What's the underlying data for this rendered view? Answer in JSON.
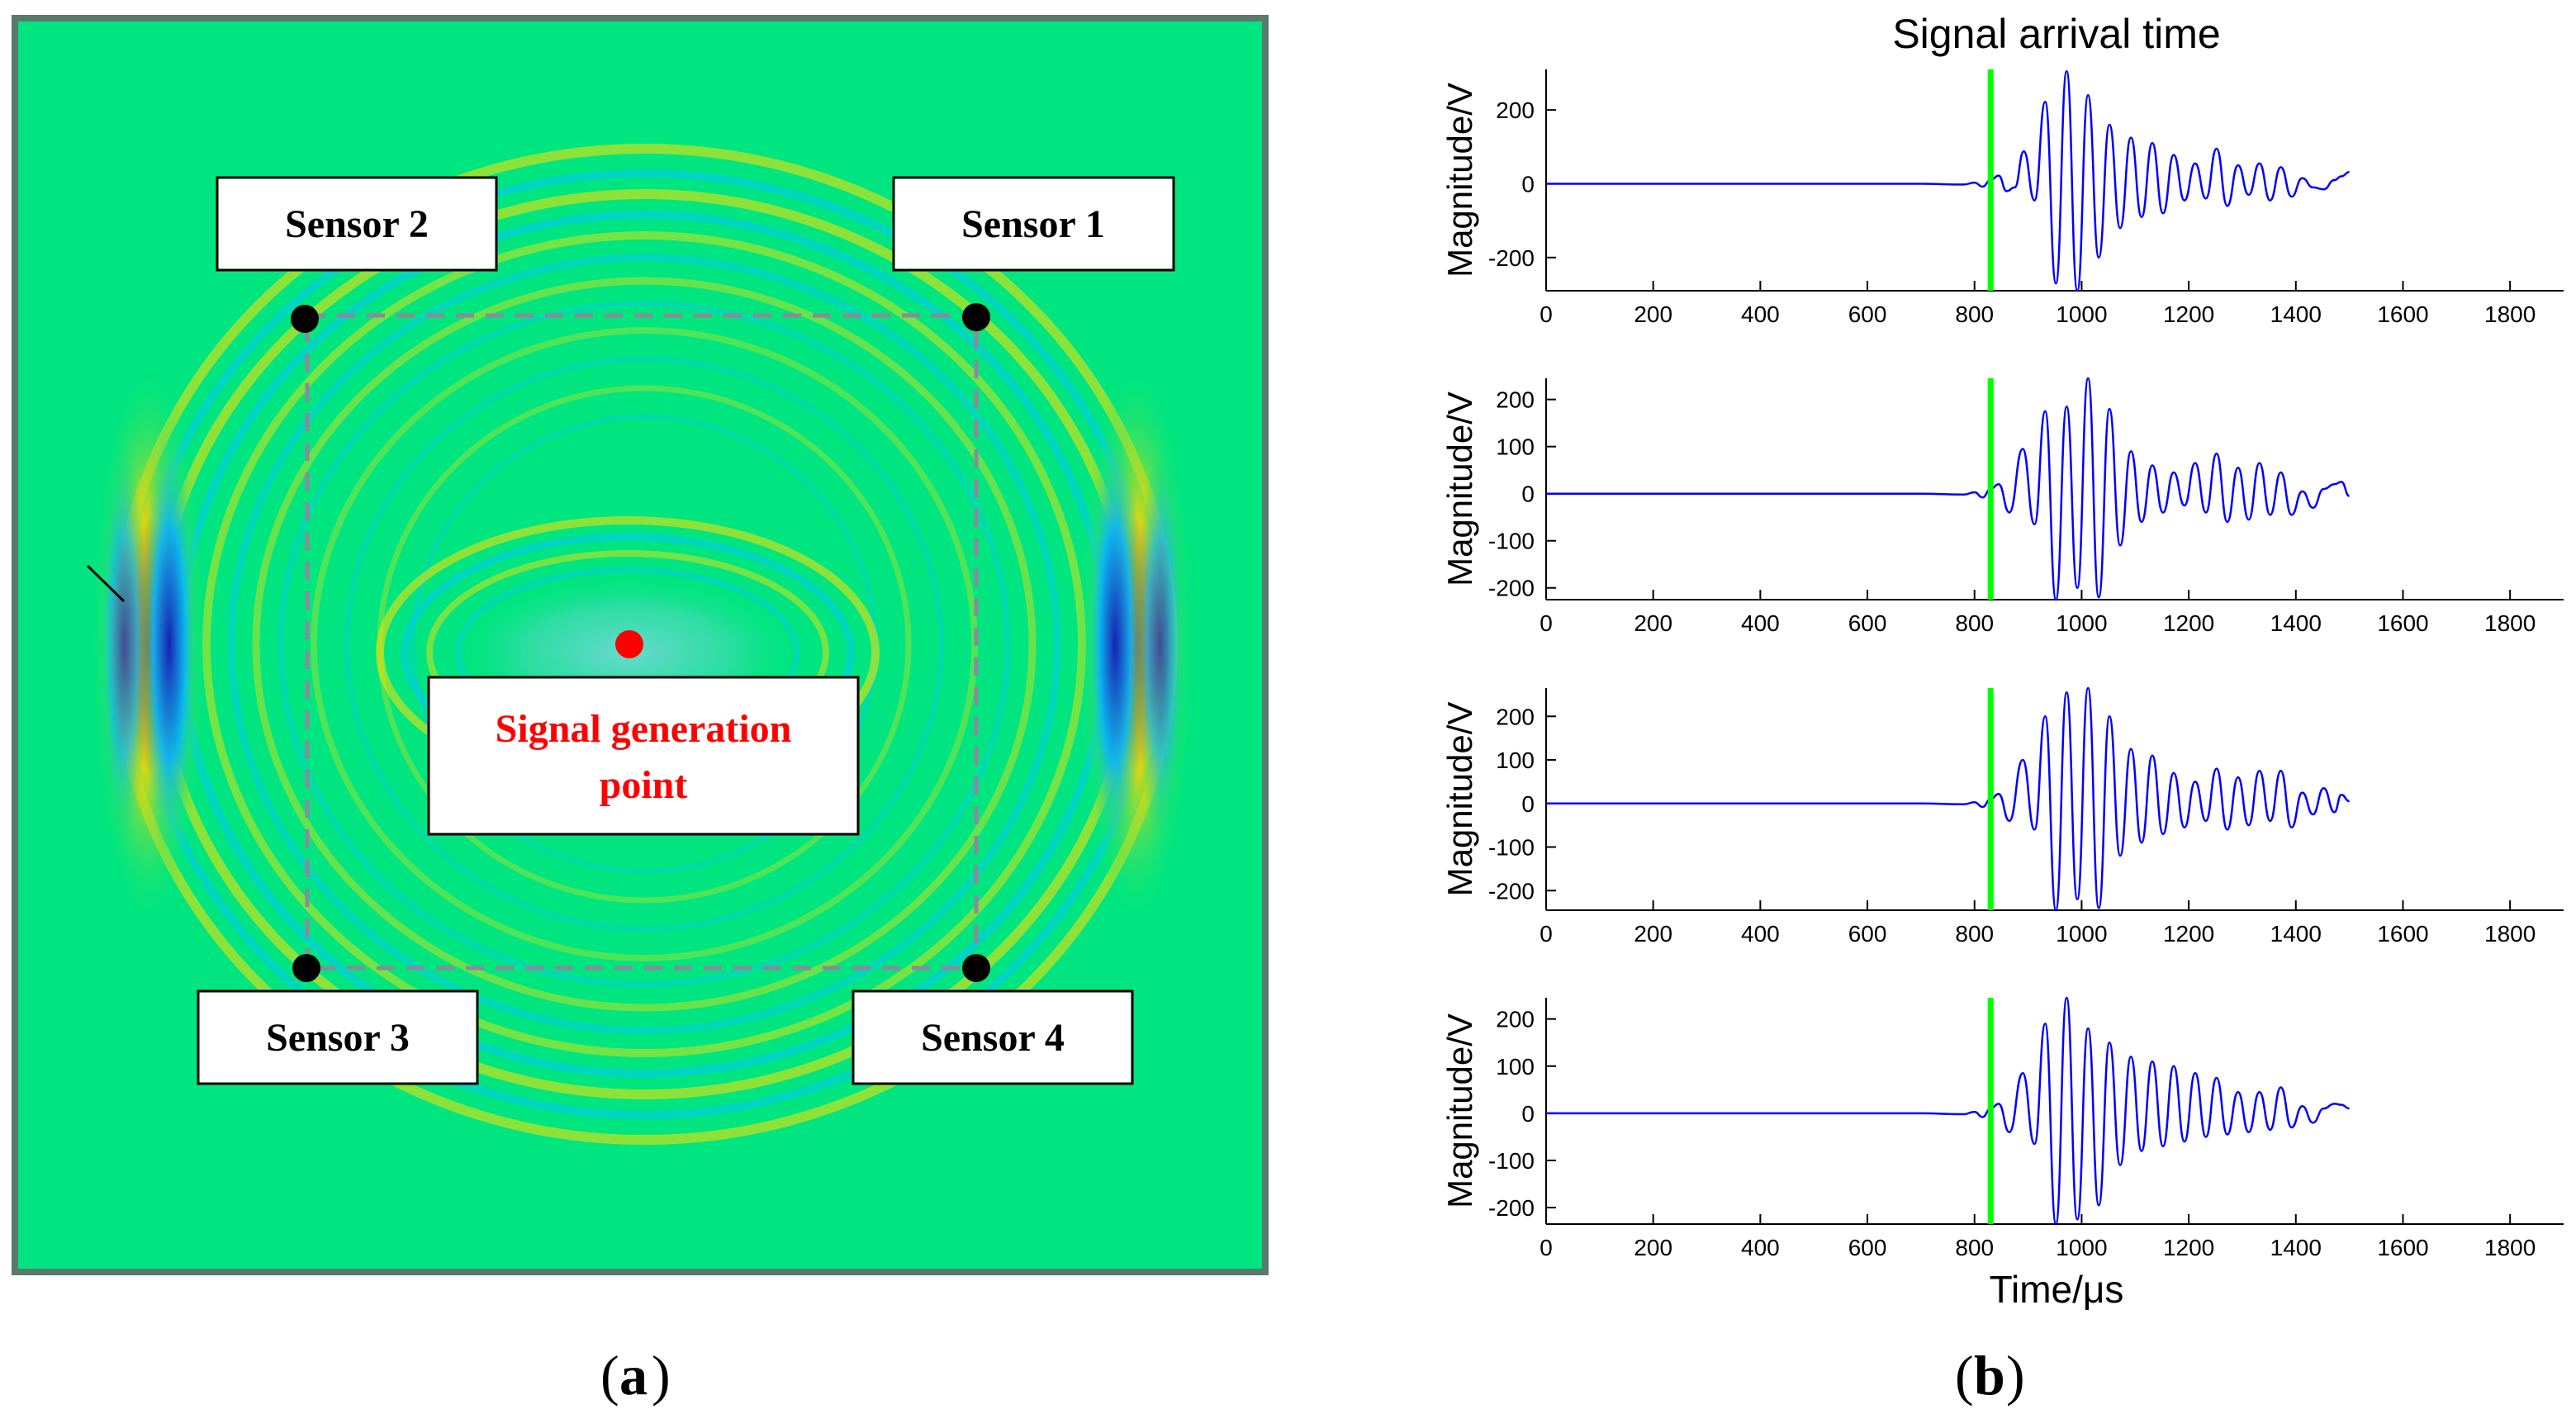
{
  "panel_a": {
    "caption_letter": "a",
    "sensors": [
      {
        "label": "Sensor 1",
        "corner": "top-right"
      },
      {
        "label": "Sensor 2",
        "corner": "top-left"
      },
      {
        "label": "Sensor 3",
        "corner": "bottom-left"
      },
      {
        "label": "Sensor 4",
        "corner": "bottom-right"
      }
    ],
    "source_label_line1": "Signal generation",
    "source_label_line2": "point",
    "colors": {
      "background": "#00e57f",
      "frame": "#5a7a6a",
      "sensor": "#000000",
      "source": "#ff0000",
      "source_text": "#ff0000",
      "dashed_square": "#8a8a9a"
    }
  },
  "panel_b": {
    "caption_letter": "b"
  },
  "chart_data": {
    "type": "line",
    "title": "Signal arrival time",
    "xlabel": "Time/μs",
    "ylabel": "Magnitude/V",
    "xlim": [
      0,
      1900
    ],
    "xticks": [
      0,
      200,
      400,
      600,
      800,
      1000,
      1200,
      1400,
      1600,
      1800
    ],
    "arrival_time_marker": 830,
    "colors": {
      "signal": "#0000ff",
      "marker": "#00ff00"
    },
    "series": [
      {
        "name": "Sensor 1",
        "ylim": [
          -290,
          310
        ],
        "yticks": [
          -200,
          0,
          200
        ],
        "points": [
          [
            0,
            0
          ],
          [
            700,
            0
          ],
          [
            780,
            -2
          ],
          [
            800,
            3
          ],
          [
            815,
            -8
          ],
          [
            830,
            10
          ],
          [
            845,
            22
          ],
          [
            860,
            -20
          ],
          [
            875,
            -10
          ],
          [
            892,
            88
          ],
          [
            912,
            -45
          ],
          [
            932,
            222
          ],
          [
            952,
            -270
          ],
          [
            972,
            305
          ],
          [
            992,
            -290
          ],
          [
            1012,
            240
          ],
          [
            1032,
            -200
          ],
          [
            1052,
            160
          ],
          [
            1072,
            -120
          ],
          [
            1092,
            125
          ],
          [
            1112,
            -90
          ],
          [
            1132,
            110
          ],
          [
            1152,
            -80
          ],
          [
            1172,
            78
          ],
          [
            1192,
            -45
          ],
          [
            1212,
            55
          ],
          [
            1232,
            -40
          ],
          [
            1252,
            95
          ],
          [
            1272,
            -60
          ],
          [
            1292,
            50
          ],
          [
            1312,
            -30
          ],
          [
            1332,
            55
          ],
          [
            1352,
            -45
          ],
          [
            1372,
            45
          ],
          [
            1392,
            -35
          ],
          [
            1412,
            15
          ],
          [
            1432,
            -10
          ],
          [
            1452,
            -15
          ],
          [
            1472,
            10
          ],
          [
            1485,
            20
          ],
          [
            1500,
            32
          ]
        ]
      },
      {
        "name": "Sensor 2",
        "ylim": [
          -225,
          245
        ],
        "yticks": [
          -200,
          -100,
          0,
          100,
          200
        ],
        "points": [
          [
            0,
            0
          ],
          [
            700,
            0
          ],
          [
            780,
            -2
          ],
          [
            800,
            3
          ],
          [
            815,
            -8
          ],
          [
            830,
            10
          ],
          [
            845,
            20
          ],
          [
            865,
            -40
          ],
          [
            890,
            95
          ],
          [
            912,
            -65
          ],
          [
            932,
            175
          ],
          [
            952,
            -225
          ],
          [
            972,
            185
          ],
          [
            992,
            -200
          ],
          [
            1012,
            245
          ],
          [
            1032,
            -220
          ],
          [
            1052,
            180
          ],
          [
            1072,
            -110
          ],
          [
            1092,
            90
          ],
          [
            1112,
            -60
          ],
          [
            1132,
            60
          ],
          [
            1152,
            -40
          ],
          [
            1172,
            45
          ],
          [
            1192,
            -25
          ],
          [
            1212,
            65
          ],
          [
            1232,
            -40
          ],
          [
            1252,
            85
          ],
          [
            1272,
            -60
          ],
          [
            1292,
            55
          ],
          [
            1312,
            -55
          ],
          [
            1332,
            65
          ],
          [
            1352,
            -45
          ],
          [
            1372,
            45
          ],
          [
            1392,
            -45
          ],
          [
            1412,
            5
          ],
          [
            1432,
            -30
          ],
          [
            1452,
            10
          ],
          [
            1472,
            20
          ],
          [
            1485,
            25
          ],
          [
            1500,
            -5
          ]
        ]
      },
      {
        "name": "Sensor 3",
        "ylim": [
          -245,
          265
        ],
        "yticks": [
          -200,
          -100,
          0,
          100,
          200
        ],
        "points": [
          [
            0,
            0
          ],
          [
            700,
            0
          ],
          [
            780,
            -2
          ],
          [
            800,
            3
          ],
          [
            815,
            -8
          ],
          [
            830,
            10
          ],
          [
            845,
            22
          ],
          [
            865,
            -40
          ],
          [
            890,
            100
          ],
          [
            912,
            -60
          ],
          [
            932,
            200
          ],
          [
            952,
            -245
          ],
          [
            972,
            255
          ],
          [
            992,
            -220
          ],
          [
            1012,
            265
          ],
          [
            1032,
            -240
          ],
          [
            1052,
            200
          ],
          [
            1072,
            -120
          ],
          [
            1092,
            125
          ],
          [
            1112,
            -90
          ],
          [
            1132,
            110
          ],
          [
            1152,
            -70
          ],
          [
            1172,
            70
          ],
          [
            1192,
            -55
          ],
          [
            1212,
            50
          ],
          [
            1232,
            -40
          ],
          [
            1252,
            80
          ],
          [
            1272,
            -60
          ],
          [
            1292,
            60
          ],
          [
            1312,
            -50
          ],
          [
            1332,
            75
          ],
          [
            1352,
            -40
          ],
          [
            1372,
            75
          ],
          [
            1392,
            -55
          ],
          [
            1412,
            25
          ],
          [
            1432,
            -25
          ],
          [
            1452,
            35
          ],
          [
            1472,
            -20
          ],
          [
            1485,
            20
          ],
          [
            1500,
            5
          ]
        ]
      },
      {
        "name": "Sensor 4",
        "ylim": [
          -235,
          245
        ],
        "yticks": [
          -200,
          -100,
          0,
          100,
          200
        ],
        "points": [
          [
            0,
            0
          ],
          [
            700,
            0
          ],
          [
            780,
            -2
          ],
          [
            800,
            3
          ],
          [
            815,
            -8
          ],
          [
            830,
            10
          ],
          [
            845,
            20
          ],
          [
            865,
            -40
          ],
          [
            890,
            85
          ],
          [
            912,
            -65
          ],
          [
            932,
            190
          ],
          [
            952,
            -235
          ],
          [
            972,
            245
          ],
          [
            992,
            -225
          ],
          [
            1012,
            180
          ],
          [
            1032,
            -195
          ],
          [
            1052,
            150
          ],
          [
            1072,
            -110
          ],
          [
            1092,
            120
          ],
          [
            1112,
            -80
          ],
          [
            1132,
            110
          ],
          [
            1152,
            -70
          ],
          [
            1172,
            100
          ],
          [
            1192,
            -60
          ],
          [
            1212,
            85
          ],
          [
            1232,
            -50
          ],
          [
            1252,
            75
          ],
          [
            1272,
            -45
          ],
          [
            1292,
            45
          ],
          [
            1312,
            -40
          ],
          [
            1332,
            45
          ],
          [
            1352,
            -35
          ],
          [
            1372,
            55
          ],
          [
            1392,
            -30
          ],
          [
            1412,
            15
          ],
          [
            1432,
            -20
          ],
          [
            1452,
            10
          ],
          [
            1472,
            20
          ],
          [
            1485,
            18
          ],
          [
            1500,
            10
          ]
        ]
      }
    ]
  }
}
